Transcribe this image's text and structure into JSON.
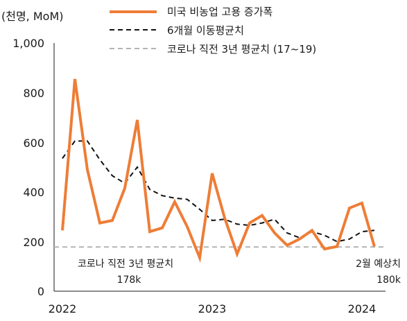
{
  "chart_data": {
    "type": "line",
    "unit_label": "(천명, MoM)",
    "ylim": [
      0,
      1000
    ],
    "yticks": [
      "0",
      "200",
      "400",
      "600",
      "800",
      "1,000"
    ],
    "xticks": [
      {
        "label": "2022",
        "value": 2022.0
      },
      {
        "label": "2023",
        "value": 2023.0
      },
      {
        "label": "2024",
        "value": 2024.0
      }
    ],
    "legend": [
      "미국 비농업 고용 증가폭",
      "6개월 이동평균치",
      "코로나 직전 3년 평균치 (17~19)"
    ],
    "colors": {
      "payrolls": "#ee7d37",
      "moving_avg": "#111111",
      "baseline": "#b3b3b3"
    },
    "series": [
      {
        "name": "미국 비농업 고용 증가폭",
        "style": "solid",
        "x": [
          "2022-01",
          "2022-02",
          "2022-03",
          "2022-04",
          "2022-05",
          "2022-06",
          "2022-07",
          "2022-08",
          "2022-09",
          "2022-10",
          "2022-11",
          "2022-12",
          "2023-01",
          "2023-02",
          "2023-03",
          "2023-04",
          "2023-05",
          "2023-06",
          "2023-07",
          "2023-08",
          "2023-09",
          "2023-10",
          "2023-11",
          "2023-12",
          "2024-01",
          "2024-02"
        ],
        "values": [
          245,
          855,
          490,
          275,
          285,
          415,
          690,
          240,
          255,
          360,
          260,
          135,
          475,
          295,
          150,
          275,
          305,
          235,
          185,
          210,
          245,
          170,
          180,
          335,
          355,
          180
        ]
      },
      {
        "name": "6개월 이동평균치",
        "style": "dashed",
        "x": [
          "2022-01",
          "2022-02",
          "2022-03",
          "2022-04",
          "2022-05",
          "2022-06",
          "2022-07",
          "2022-08",
          "2022-09",
          "2022-10",
          "2022-11",
          "2022-12",
          "2023-01",
          "2023-02",
          "2023-03",
          "2023-04",
          "2023-05",
          "2023-06",
          "2023-07",
          "2023-08",
          "2023-09",
          "2023-10",
          "2023-11",
          "2023-12",
          "2024-01",
          "2024-02"
        ],
        "values": [
          535,
          605,
          605,
          530,
          465,
          435,
          500,
          410,
          385,
          375,
          370,
          330,
          285,
          290,
          270,
          265,
          275,
          290,
          235,
          215,
          240,
          225,
          200,
          210,
          240,
          245
        ]
      },
      {
        "name": "코로나 직전 3년 평균치 (17~19)",
        "style": "dashed",
        "x": [
          "2022-01",
          "2024-02"
        ],
        "values": [
          178,
          178
        ]
      }
    ],
    "annotations": [
      {
        "text": "코로나 직전 3년 평균치",
        "value": "178k"
      },
      {
        "text": "2월 예상치",
        "value": "180k"
      }
    ]
  }
}
